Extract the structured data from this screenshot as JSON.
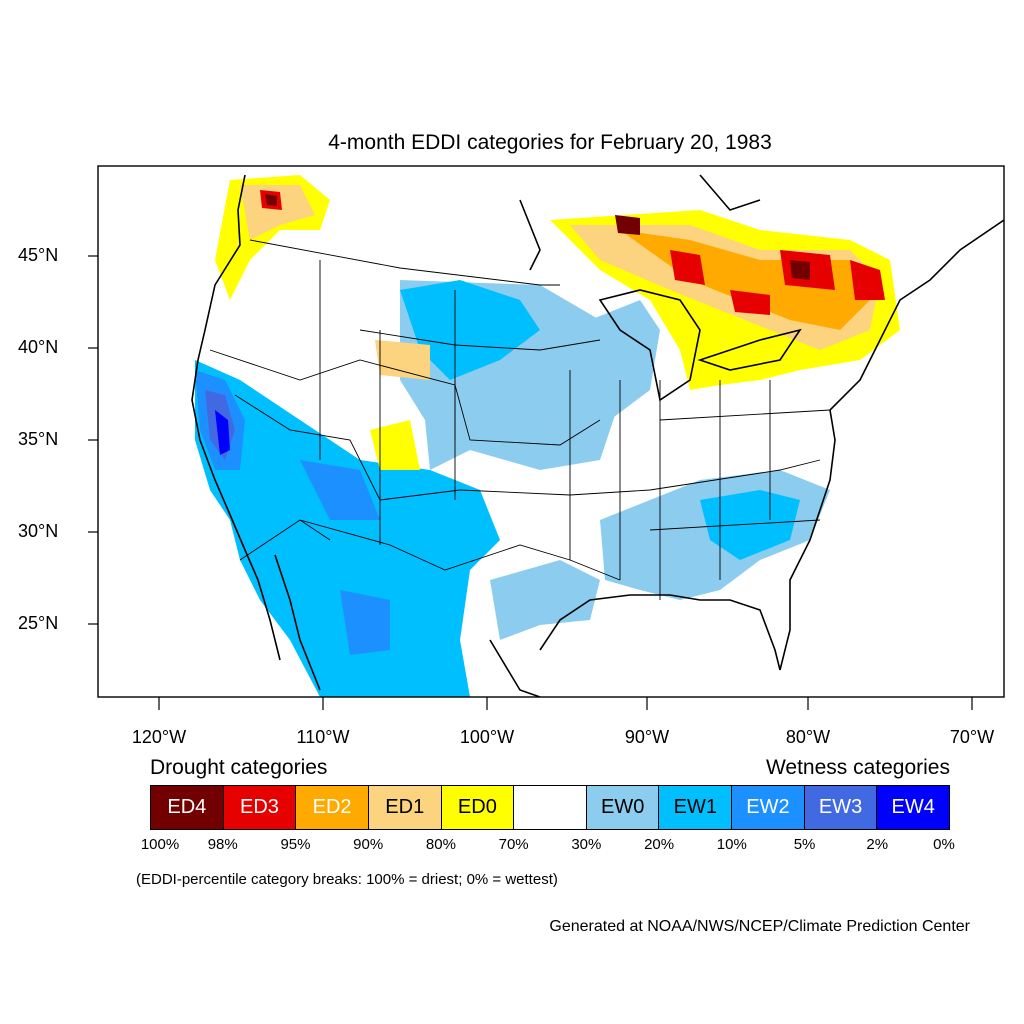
{
  "title": "4-month EDDI categories for February 20, 1983",
  "lat_labels": [
    "45°N",
    "40°N",
    "35°N",
    "30°N",
    "25°N"
  ],
  "lon_labels": [
    "120°W",
    "110°W",
    "100°W",
    "90°W",
    "80°W",
    "70°W"
  ],
  "legend": {
    "drought_heading": "Drought categories",
    "wetness_heading": "Wetness categories",
    "categories": [
      {
        "label": "ED4",
        "color": "#730000",
        "text_color": "#ffffff"
      },
      {
        "label": "ED3",
        "color": "#e60000",
        "text_color": "#ffffff"
      },
      {
        "label": "ED2",
        "color": "#ffaa00",
        "text_color": "#ffffff"
      },
      {
        "label": "ED1",
        "color": "#fcd37f",
        "text_color": "#000000"
      },
      {
        "label": "ED0",
        "color": "#ffff00",
        "text_color": "#000000"
      },
      {
        "label": "",
        "color": "#ffffff",
        "text_color": "#000000"
      },
      {
        "label": "EW0",
        "color": "#8ccdef",
        "text_color": "#000000"
      },
      {
        "label": "EW1",
        "color": "#00bfff",
        "text_color": "#000000"
      },
      {
        "label": "EW2",
        "color": "#1d90ff",
        "text_color": "#ffffff"
      },
      {
        "label": "EW3",
        "color": "#4169e1",
        "text_color": "#ffffff"
      },
      {
        "label": "EW4",
        "color": "#0000ff",
        "text_color": "#ffffff"
      }
    ],
    "percentiles": [
      "100%",
      "98%",
      "95%",
      "90%",
      "80%",
      "70%",
      "30%",
      "20%",
      "10%",
      "5%",
      "2%",
      "0%"
    ]
  },
  "note": "(EDDI-percentile category breaks: 100% = driest; 0% = wettest)",
  "credit": "Generated at NOAA/NWS/NCEP/Climate Prediction Center"
}
